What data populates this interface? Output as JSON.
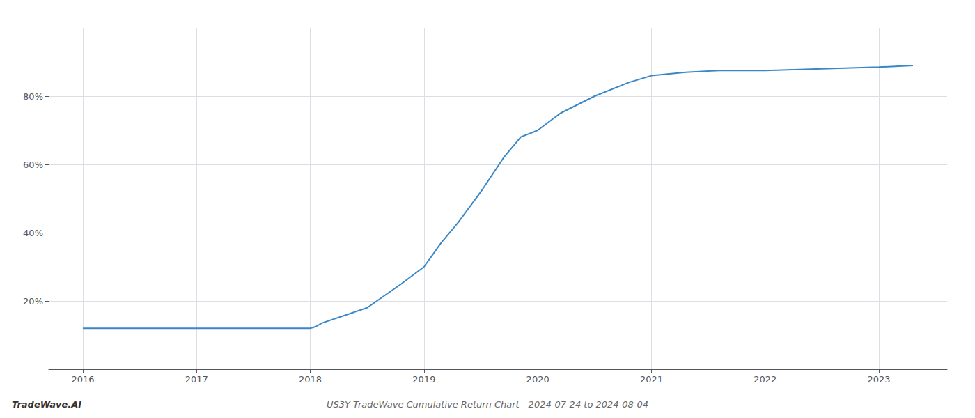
{
  "chart_data": {
    "type": "line",
    "title": "US3Y TradeWave Cumulative Return Chart - 2024-07-24 to 2024-08-04",
    "annotations": [
      "TradeWave.AI"
    ],
    "x": [
      2016.0,
      2016.6,
      2017.0,
      2017.6,
      2018.0,
      2018.05,
      2018.1,
      2018.5,
      2018.8,
      2019.0,
      2019.15,
      2019.3,
      2019.5,
      2019.7,
      2019.85,
      2020.0,
      2020.2,
      2020.5,
      2020.8,
      2021.0,
      2021.3,
      2021.6,
      2022.0,
      2022.5,
      2023.0,
      2023.3
    ],
    "values": [
      12,
      12,
      12,
      12,
      12,
      12.5,
      13.5,
      18,
      25,
      30,
      37,
      43,
      52,
      62,
      68,
      70,
      75,
      80,
      84,
      86,
      87,
      87.5,
      87.5,
      88,
      88.5,
      89
    ],
    "color": "#3a87c8",
    "xlim": [
      2015.7,
      2023.6
    ],
    "xticks": [
      2016,
      2017,
      2018,
      2019,
      2020,
      2021,
      2022,
      2023
    ],
    "ylim": [
      0,
      100
    ],
    "yticks": [
      {
        "value": 20,
        "label": "20%"
      },
      {
        "value": 40,
        "label": "40%"
      },
      {
        "value": 60,
        "label": "60%"
      },
      {
        "value": 80,
        "label": "80%"
      }
    ],
    "grid": true
  }
}
